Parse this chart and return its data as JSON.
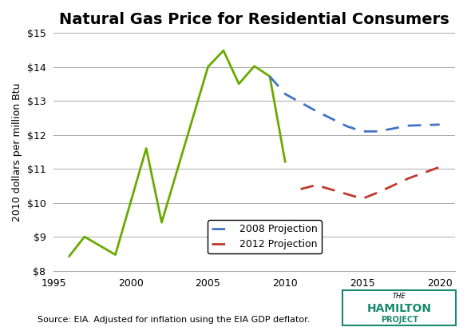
{
  "title": "Natural Gas Price for Residential Consumers",
  "ylabel": "2010 dollars per million Btu",
  "xlabel": "",
  "source_text": "Source: EIA. Adjusted for inflation using the EIA GDP deflator.",
  "xlim": [
    1995,
    2021
  ],
  "ylim": [
    8,
    15
  ],
  "yticks": [
    8,
    9,
    10,
    11,
    12,
    13,
    14,
    15
  ],
  "ytick_labels": [
    "$8",
    "$9",
    "$10",
    "$11",
    "$12",
    "$13",
    "$14",
    "$15"
  ],
  "xticks": [
    1995,
    2000,
    2005,
    2010,
    2015,
    2020
  ],
  "historical_x": [
    1996,
    1997,
    1999,
    2001,
    2002,
    2005,
    2006,
    2007,
    2008,
    2009,
    2010
  ],
  "historical_y": [
    8.42,
    9.0,
    8.47,
    11.6,
    9.42,
    14.0,
    14.48,
    13.5,
    14.02,
    13.72,
    11.2
  ],
  "historical_color": "#6aaa00",
  "proj2008_x": [
    2009,
    2010,
    2012,
    2014,
    2015,
    2016,
    2018,
    2020
  ],
  "proj2008_y": [
    13.72,
    13.2,
    12.7,
    12.25,
    12.1,
    12.1,
    12.27,
    12.3
  ],
  "proj2008_color": "#4472c4",
  "proj2012_x": [
    2011,
    2012,
    2015,
    2016,
    2018,
    2020
  ],
  "proj2012_y": [
    10.4,
    10.52,
    10.12,
    10.3,
    10.72,
    11.05
  ],
  "proj2012_color": "#c0392b",
  "legend_2008": "2008 Projection",
  "legend_2012": "2012 Projection",
  "background_color": "#ffffff",
  "grid_color": "#aaaaaa",
  "title_fontsize": 14,
  "label_fontsize": 9,
  "tick_fontsize": 9,
  "source_fontsize": 8,
  "hamilton_color": "#1a8a6e"
}
